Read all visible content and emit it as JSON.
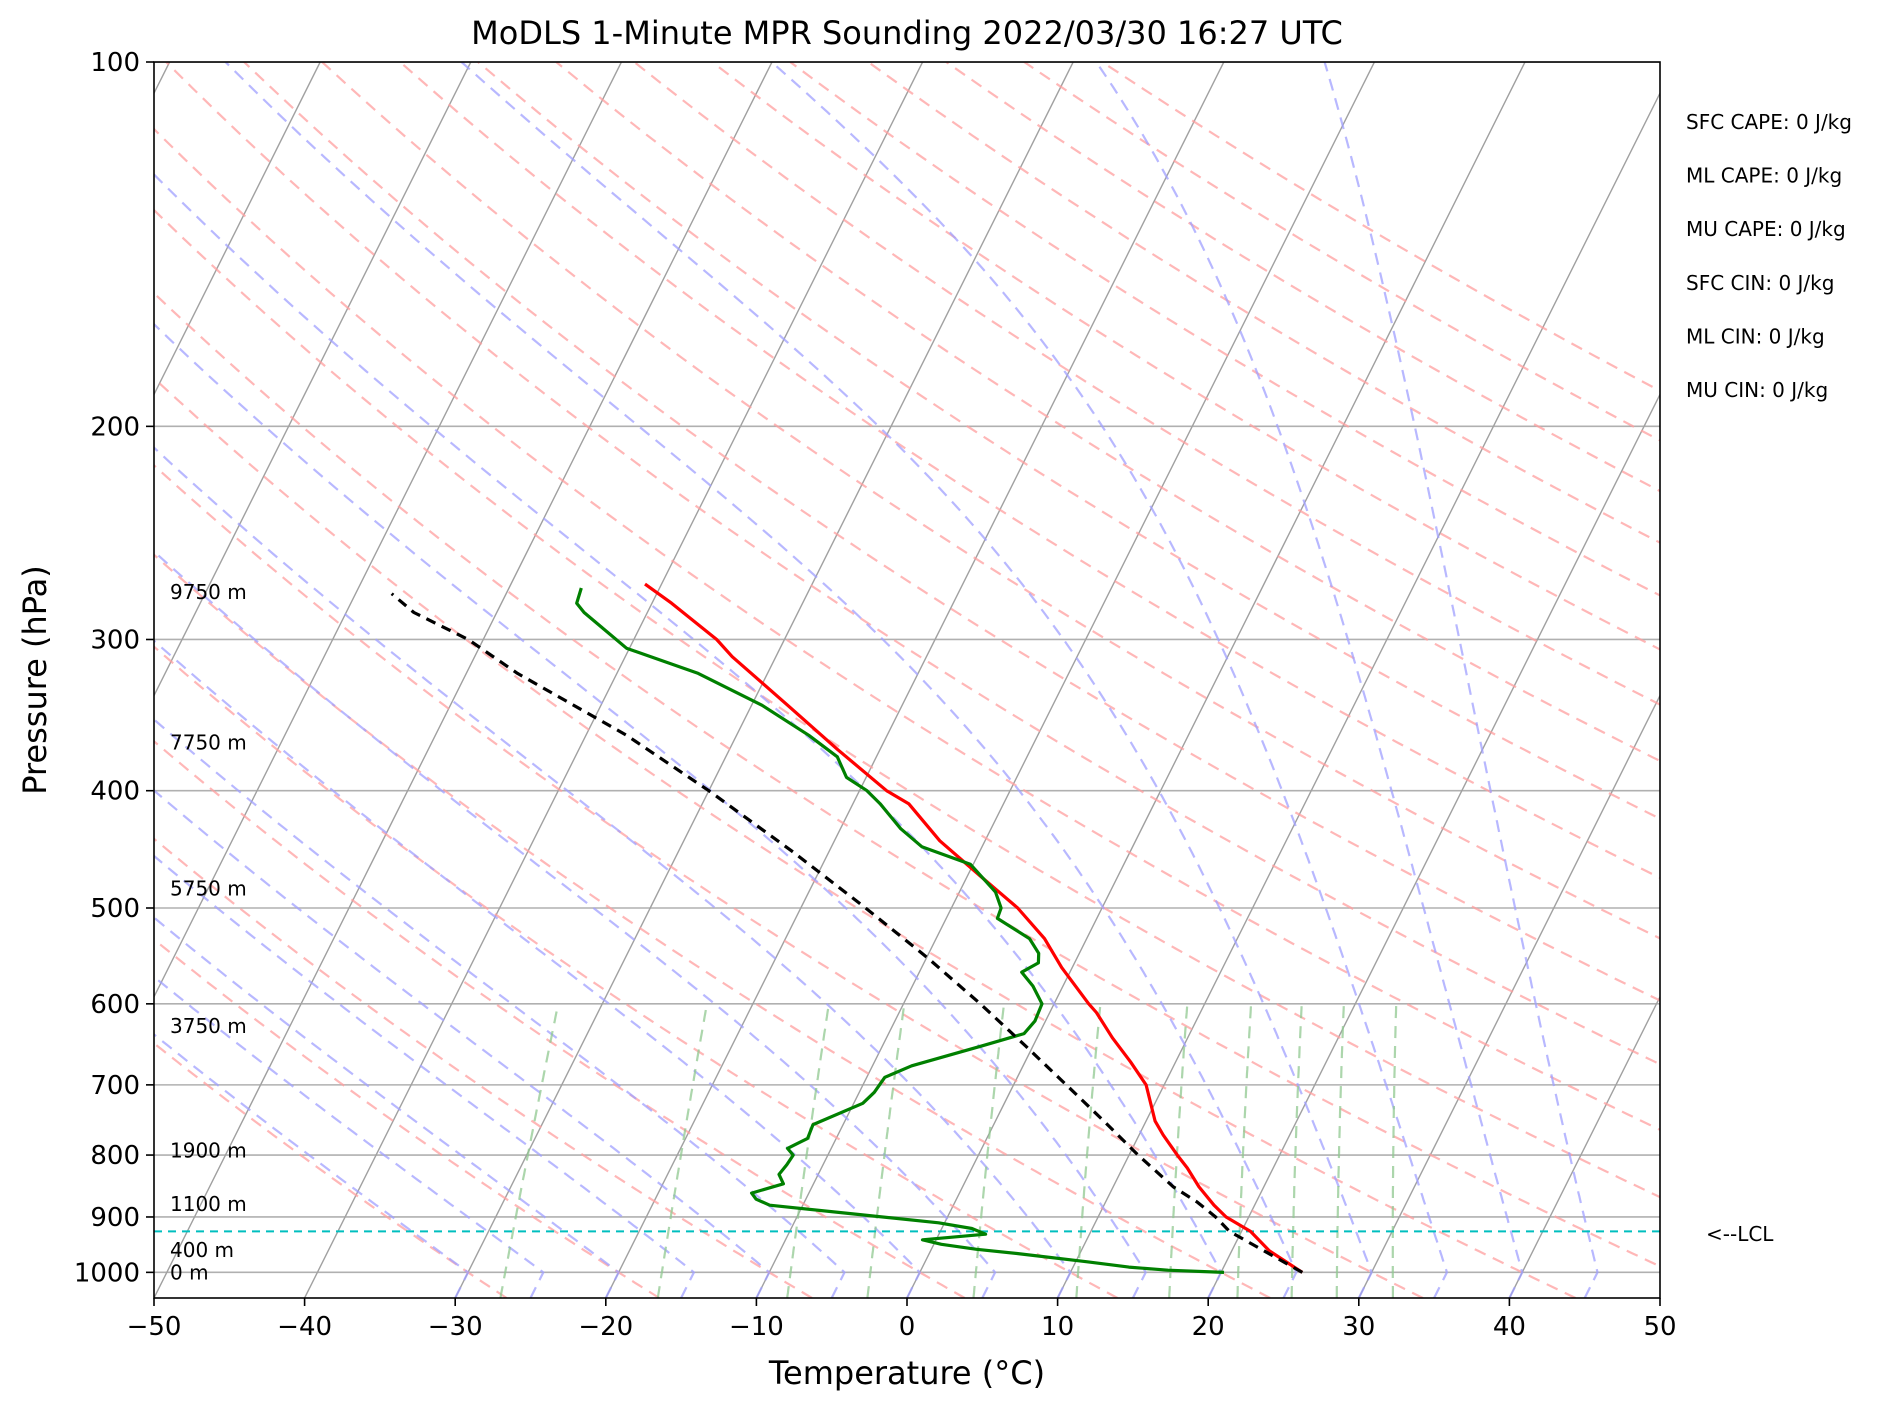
{
  "chart_data": {
    "type": "line",
    "title": "MoDLS 1-Minute MPR Sounding 2022/03/30 16:27 UTC",
    "xlabel": "Temperature (°C)",
    "ylabel": "Pressure (hPa)",
    "xlim": [
      -50,
      50
    ],
    "ylim": [
      1050,
      100
    ],
    "y_scale": "log",
    "x_ticks": [
      -50,
      -40,
      -30,
      -20,
      -10,
      0,
      10,
      20,
      30,
      40,
      50
    ],
    "x_tick_labels": [
      "−50",
      "−40",
      "−30",
      "−20",
      "−10",
      "0",
      "10",
      "20",
      "30",
      "40",
      "50"
    ],
    "y_ticks": [
      100,
      200,
      300,
      400,
      500,
      600,
      700,
      800,
      900,
      1000
    ],
    "y_tick_labels": [
      "100",
      "200",
      "300",
      "400",
      "500",
      "600",
      "700",
      "800",
      "900",
      "1000"
    ],
    "grid": true,
    "skew": "skew-T",
    "colors": {
      "temperature": "#ff0000",
      "dewpoint": "#008000",
      "parcel": "#000000",
      "dry_adiabat": "#ff9f9f",
      "moist_adiabat": "#a0a0ff",
      "mixing_ratio": "#90c890",
      "isotherm": "#a0a0a0",
      "lcl": "#00bfbf"
    },
    "series": [
      {
        "name": "temperature",
        "points": [
          {
            "t": 25.4,
            "p": 1000
          },
          {
            "t": 22.5,
            "p": 960
          },
          {
            "t": 20.6,
            "p": 925
          },
          {
            "t": 18.5,
            "p": 900
          },
          {
            "t": 17.3,
            "p": 880
          },
          {
            "t": 15.7,
            "p": 850
          },
          {
            "t": 14.3,
            "p": 820
          },
          {
            "t": 13.2,
            "p": 800
          },
          {
            "t": 11.6,
            "p": 770
          },
          {
            "t": 10.6,
            "p": 750
          },
          {
            "t": 8.8,
            "p": 700
          },
          {
            "t": 7.0,
            "p": 670
          },
          {
            "t": 5.0,
            "p": 640
          },
          {
            "t": 3.1,
            "p": 610
          },
          {
            "t": 2.3,
            "p": 600
          },
          {
            "t": -0.7,
            "p": 560
          },
          {
            "t": -2.8,
            "p": 530
          },
          {
            "t": -5.6,
            "p": 500
          },
          {
            "t": -9.2,
            "p": 470
          },
          {
            "t": -13.0,
            "p": 440
          },
          {
            "t": -16.3,
            "p": 410
          },
          {
            "t": -18.2,
            "p": 400
          },
          {
            "t": -22.8,
            "p": 370
          },
          {
            "t": -27.6,
            "p": 340
          },
          {
            "t": -32.9,
            "p": 310
          },
          {
            "t": -34.5,
            "p": 300
          },
          {
            "t": -38.7,
            "p": 280
          },
          {
            "t": -41.1,
            "p": 270
          }
        ]
      },
      {
        "name": "dewpoint",
        "points": [
          {
            "t": 20.2,
            "p": 1000
          },
          {
            "t": 16.4,
            "p": 996
          },
          {
            "t": 13.7,
            "p": 990
          },
          {
            "t": 10.7,
            "p": 980
          },
          {
            "t": 5.9,
            "p": 965
          },
          {
            "t": 3.0,
            "p": 957
          },
          {
            "t": 0.5,
            "p": 948
          },
          {
            "t": -0.9,
            "p": 940
          },
          {
            "t": 3.1,
            "p": 930
          },
          {
            "t": 2.0,
            "p": 920
          },
          {
            "t": -0.4,
            "p": 910
          },
          {
            "t": -6.3,
            "p": 895
          },
          {
            "t": -12.2,
            "p": 880
          },
          {
            "t": -13.3,
            "p": 870
          },
          {
            "t": -13.8,
            "p": 860
          },
          {
            "t": -12.0,
            "p": 845
          },
          {
            "t": -12.6,
            "p": 830
          },
          {
            "t": -12.4,
            "p": 815
          },
          {
            "t": -12.3,
            "p": 800
          },
          {
            "t": -12.9,
            "p": 790
          },
          {
            "t": -11.9,
            "p": 775
          },
          {
            "t": -12.0,
            "p": 755
          },
          {
            "t": -9.4,
            "p": 725
          },
          {
            "t": -9.0,
            "p": 710
          },
          {
            "t": -8.8,
            "p": 690
          },
          {
            "t": -7.4,
            "p": 675
          },
          {
            "t": -3.4,
            "p": 650
          },
          {
            "t": -1.0,
            "p": 635
          },
          {
            "t": -0.7,
            "p": 620
          },
          {
            "t": -0.8,
            "p": 600
          },
          {
            "t": -2.0,
            "p": 580
          },
          {
            "t": -3.2,
            "p": 565
          },
          {
            "t": -2.4,
            "p": 555
          },
          {
            "t": -2.7,
            "p": 545
          },
          {
            "t": -3.8,
            "p": 530
          },
          {
            "t": -6.6,
            "p": 510
          },
          {
            "t": -6.7,
            "p": 500
          },
          {
            "t": -7.6,
            "p": 485
          },
          {
            "t": -10.2,
            "p": 460
          },
          {
            "t": -14.0,
            "p": 445
          },
          {
            "t": -16.0,
            "p": 430
          },
          {
            "t": -18.2,
            "p": 410
          },
          {
            "t": -19.5,
            "p": 400
          },
          {
            "t": -21.3,
            "p": 390
          },
          {
            "t": -22.6,
            "p": 375
          },
          {
            "t": -25.2,
            "p": 360
          },
          {
            "t": -29.3,
            "p": 340
          },
          {
            "t": -34.6,
            "p": 320
          },
          {
            "t": -40.2,
            "p": 305
          },
          {
            "t": -44.2,
            "p": 285
          },
          {
            "t": -45.0,
            "p": 280
          },
          {
            "t": -45.2,
            "p": 272
          }
        ]
      },
      {
        "name": "parcel",
        "points": [
          {
            "t": 25.4,
            "p": 1000
          },
          {
            "t": 19.2,
            "p": 925
          },
          {
            "t": 17.8,
            "p": 900
          },
          {
            "t": 16.1,
            "p": 875
          },
          {
            "t": 14.0,
            "p": 850
          },
          {
            "t": 10.6,
            "p": 800
          },
          {
            "t": 7.2,
            "p": 750
          },
          {
            "t": 3.5,
            "p": 700
          },
          {
            "t": -0.5,
            "p": 650
          },
          {
            "t": -4.9,
            "p": 600
          },
          {
            "t": -9.9,
            "p": 550
          },
          {
            "t": -15.7,
            "p": 500
          },
          {
            "t": -22.3,
            "p": 450
          },
          {
            "t": -30.0,
            "p": 400
          },
          {
            "t": -37.3,
            "p": 360
          },
          {
            "t": -46.6,
            "p": 320
          },
          {
            "t": -51.0,
            "p": 300
          },
          {
            "t": -55.5,
            "p": 285
          },
          {
            "t": -57.6,
            "p": 275
          }
        ]
      }
    ],
    "height_labels": [
      {
        "text": "9750 m",
        "p": 274
      },
      {
        "text": "7750 m",
        "p": 365
      },
      {
        "text": "5750 m",
        "p": 482
      },
      {
        "text": "3750 m",
        "p": 626
      },
      {
        "text": "1900 m",
        "p": 793
      },
      {
        "text": "1100 m",
        "p": 878
      },
      {
        "text": "400 m",
        "p": 958
      },
      {
        "text": "0 m",
        "p": 1000
      }
    ],
    "lcl": {
      "p": 925,
      "label": "<--LCL"
    },
    "indices": [
      "SFC CAPE: 0 J/kg",
      "ML CAPE: 0 J/kg",
      "MU CAPE: 0 J/kg",
      "SFC CIN: 0 J/kg",
      "ML CIN: 0 J/kg",
      "MU CIN: 0 J/kg"
    ]
  }
}
